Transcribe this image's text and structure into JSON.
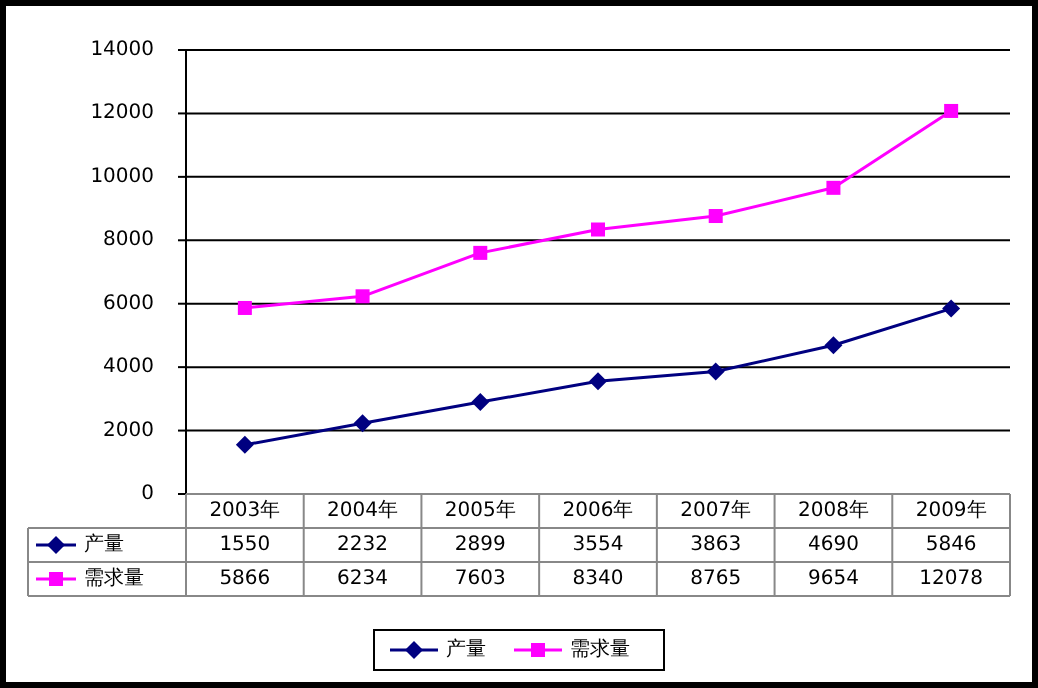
{
  "chart_data": {
    "type": "line",
    "categories": [
      "2003年",
      "2004年",
      "2005年",
      "2006年",
      "2007年",
      "2008年",
      "2009年"
    ],
    "series": [
      {
        "name": "产量",
        "color": "#000080",
        "marker": "diamond",
        "values": [
          1550,
          2232,
          2899,
          3554,
          3863,
          4690,
          5846
        ]
      },
      {
        "name": "需求量",
        "color": "#ff00ff",
        "marker": "square",
        "values": [
          5866,
          6234,
          7603,
          8340,
          8765,
          9654,
          12078
        ]
      }
    ],
    "ylim": [
      0,
      14000
    ],
    "yticks": [
      0,
      2000,
      4000,
      6000,
      8000,
      10000,
      12000,
      14000
    ],
    "grid": "y",
    "legend": "bottom",
    "data_labels": true,
    "line_style": "solid"
  }
}
